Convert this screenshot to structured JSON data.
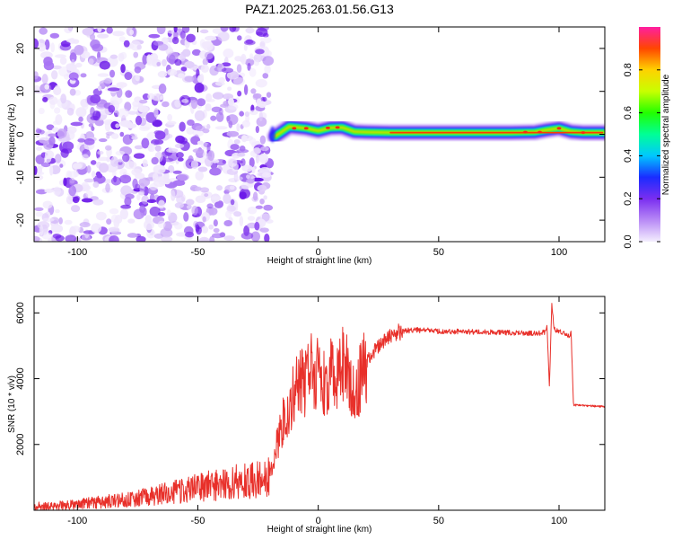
{
  "title": "PAZ1.2025.263.01.56.G13",
  "colors": {
    "snr_line": "#e8302a",
    "noise_purple": "#7a2ef0",
    "axis": "#000000",
    "background": "#ffffff"
  },
  "chart_data": [
    {
      "type": "heatmap",
      "name": "spectrogram",
      "xlabel": "Height of straight line (km)",
      "ylabel": "Frequency (Hz)",
      "xlim": [
        -118,
        119
      ],
      "ylim": [
        -25,
        25
      ],
      "xticks": [
        -100,
        -50,
        0,
        50,
        100
      ],
      "yticks": [
        -20,
        -10,
        0,
        10,
        20
      ],
      "xtick_labels": [
        "-100",
        "-50",
        "0",
        "50",
        "100"
      ],
      "ytick_labels": [
        "-20",
        "-10",
        "0",
        "10",
        "20"
      ],
      "noise_region_x": [
        -118,
        -20
      ],
      "signal_band": {
        "x": [
          -18,
          -12,
          -5,
          0,
          5,
          10,
          15,
          20,
          30,
          50,
          80,
          90,
          95,
          100,
          105,
          110,
          119
        ],
        "freq": [
          -0.5,
          1.8,
          1.4,
          0.8,
          1.5,
          1.6,
          0.6,
          0.5,
          0.4,
          0.4,
          0.4,
          0.5,
          1.0,
          1.4,
          0.6,
          0.4,
          0.4
        ]
      },
      "colorbar": {
        "label": "Normalized spectral amplitude",
        "range": [
          0,
          1
        ],
        "ticks": [
          0.0,
          0.2,
          0.4,
          0.6,
          0.8
        ],
        "tick_labels": [
          "0.0",
          "0.2",
          "0.4",
          "0.6",
          "0.8"
        ]
      }
    },
    {
      "type": "line",
      "name": "snr",
      "xlabel": "Height of straight line (km)",
      "ylabel": "SNR (10 * v/v)",
      "xlim": [
        -118,
        119
      ],
      "ylim": [
        0,
        6500
      ],
      "xticks": [
        -100,
        -50,
        0,
        50,
        100
      ],
      "yticks": [
        2000,
        4000,
        6000
      ],
      "xtick_labels": [
        "-100",
        "-50",
        "0",
        "50",
        "100"
      ],
      "ytick_labels": [
        "2000",
        "4000",
        "6000"
      ],
      "series": [
        {
          "name": "SNR",
          "x": [
            -118,
            -110,
            -100,
            -90,
            -80,
            -70,
            -60,
            -50,
            -40,
            -30,
            -25,
            -20,
            -18,
            -15,
            -12,
            -10,
            -8,
            -5,
            -3,
            0,
            3,
            5,
            8,
            10,
            12,
            15,
            18,
            20,
            25,
            30,
            35,
            40,
            50,
            60,
            70,
            80,
            90,
            94,
            95,
            96,
            97,
            98,
            100,
            104,
            105,
            106,
            110,
            119
          ],
          "y": [
            120,
            140,
            180,
            250,
            320,
            420,
            550,
            680,
            800,
            900,
            950,
            1000,
            1700,
            2600,
            3200,
            3600,
            3900,
            3800,
            4200,
            4300,
            3700,
            4200,
            3900,
            4500,
            4400,
            3300,
            4300,
            4500,
            5000,
            5300,
            5450,
            5480,
            5450,
            5430,
            5420,
            5400,
            5380,
            5400,
            5600,
            3700,
            6300,
            5500,
            5450,
            5300,
            5400,
            3200,
            3180,
            3150
          ]
        }
      ]
    }
  ]
}
